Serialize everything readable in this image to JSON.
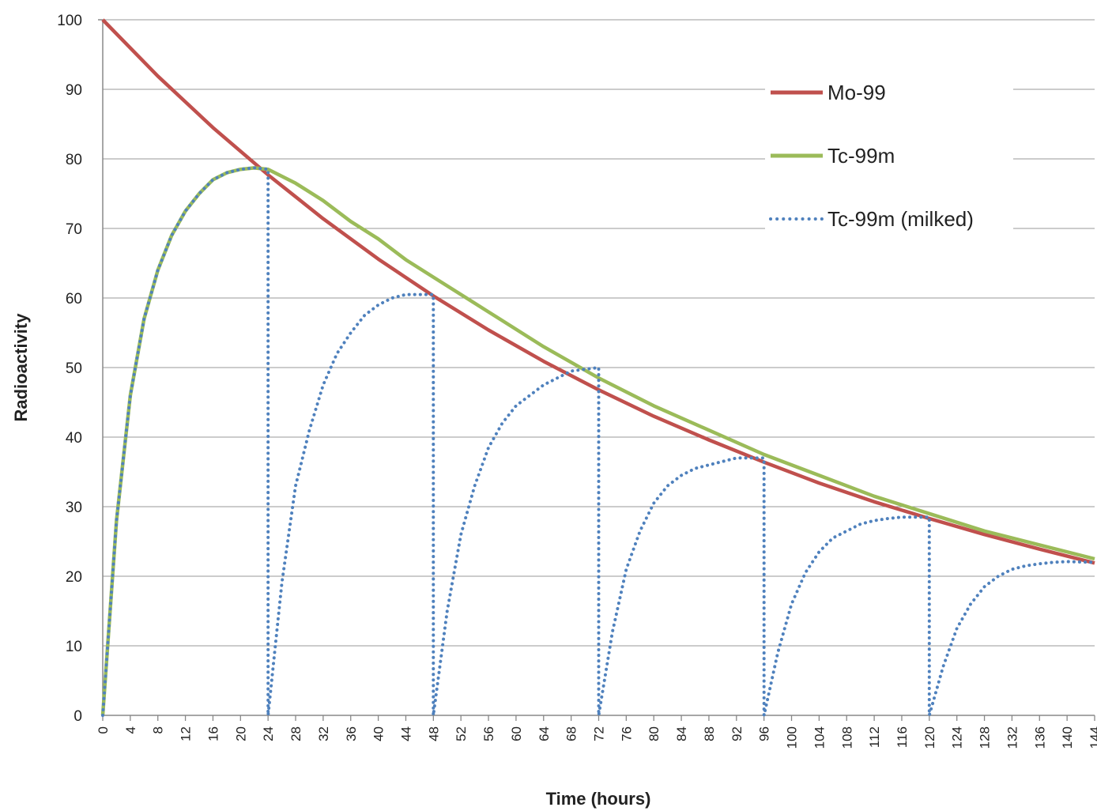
{
  "chart_data": {
    "type": "line",
    "title": "",
    "xlabel": "Time (hours)",
    "ylabel": "Radioactivity",
    "xlim": [
      0,
      144
    ],
    "ylim": [
      0,
      100
    ],
    "x_ticks": [
      0,
      4,
      8,
      12,
      16,
      20,
      24,
      28,
      32,
      36,
      40,
      44,
      48,
      52,
      56,
      60,
      64,
      68,
      72,
      76,
      80,
      84,
      88,
      92,
      96,
      100,
      104,
      108,
      112,
      116,
      120,
      124,
      128,
      132,
      136,
      140,
      144
    ],
    "y_ticks": [
      0,
      10,
      20,
      30,
      40,
      50,
      60,
      70,
      80,
      90,
      100
    ],
    "grid": "horizontal",
    "legend_position": "top-right",
    "series": [
      {
        "name": "Mo-99",
        "color": "#c0504d",
        "style": "solid",
        "x": [
          0,
          8,
          16,
          24,
          32,
          40,
          48,
          56,
          64,
          72,
          80,
          88,
          96,
          104,
          112,
          120,
          128,
          136,
          144
        ],
        "y": [
          100,
          91.9,
          84.5,
          77.7,
          71.4,
          65.6,
          60.3,
          55.4,
          50.9,
          46.8,
          43.0,
          39.6,
          36.4,
          33.4,
          30.7,
          28.3,
          26.0,
          23.9,
          21.9
        ]
      },
      {
        "name": "Tc-99m",
        "color": "#9bbb59",
        "style": "solid",
        "x": [
          0,
          2,
          4,
          6,
          8,
          10,
          12,
          14,
          16,
          18,
          20,
          22,
          24,
          28,
          32,
          36,
          40,
          44,
          48,
          56,
          64,
          72,
          80,
          88,
          96,
          104,
          112,
          120,
          128,
          136,
          144
        ],
        "y": [
          0,
          28,
          46,
          57,
          64,
          69,
          72.5,
          75,
          77,
          78,
          78.5,
          78.7,
          78.5,
          76.5,
          74,
          71,
          68.5,
          65.5,
          63,
          58,
          53,
          48.5,
          44.5,
          41,
          37.5,
          34.5,
          31.5,
          29,
          26.5,
          24.5,
          22.5
        ]
      },
      {
        "name": "Tc-99m (milked)",
        "color": "#4f81bd",
        "style": "dotted",
        "x": [
          0,
          2,
          4,
          6,
          8,
          10,
          12,
          14,
          16,
          18,
          20,
          22,
          24,
          24,
          26,
          28,
          30,
          32,
          34,
          36,
          38,
          40,
          42,
          44,
          48,
          48,
          50,
          52,
          54,
          56,
          58,
          60,
          62,
          64,
          66,
          68,
          72,
          72,
          74,
          76,
          78,
          80,
          82,
          84,
          86,
          88,
          90,
          92,
          96,
          96,
          98,
          100,
          102,
          104,
          106,
          108,
          110,
          112,
          114,
          116,
          120,
          120,
          122,
          124,
          126,
          128,
          130,
          132,
          134,
          136,
          138,
          140,
          144
        ],
        "y": [
          0,
          28,
          46,
          57,
          64,
          69,
          72.5,
          75,
          77,
          78,
          78.5,
          78.7,
          78.5,
          0,
          19,
          33,
          41,
          47.5,
          52,
          55,
          57.5,
          59,
          60,
          60.5,
          60.5,
          0,
          15,
          26,
          33,
          38.5,
          42,
          44.5,
          46,
          47.5,
          48.5,
          49.5,
          50,
          0,
          12,
          21,
          26.5,
          30.5,
          33,
          34.5,
          35.5,
          36,
          36.5,
          37,
          37,
          0,
          9,
          16,
          20.5,
          23.5,
          25.5,
          26.5,
          27.5,
          28,
          28.3,
          28.5,
          28.5,
          0,
          7,
          12.5,
          16,
          18.5,
          20,
          21,
          21.5,
          21.8,
          22,
          22.1,
          22
        ]
      }
    ]
  }
}
